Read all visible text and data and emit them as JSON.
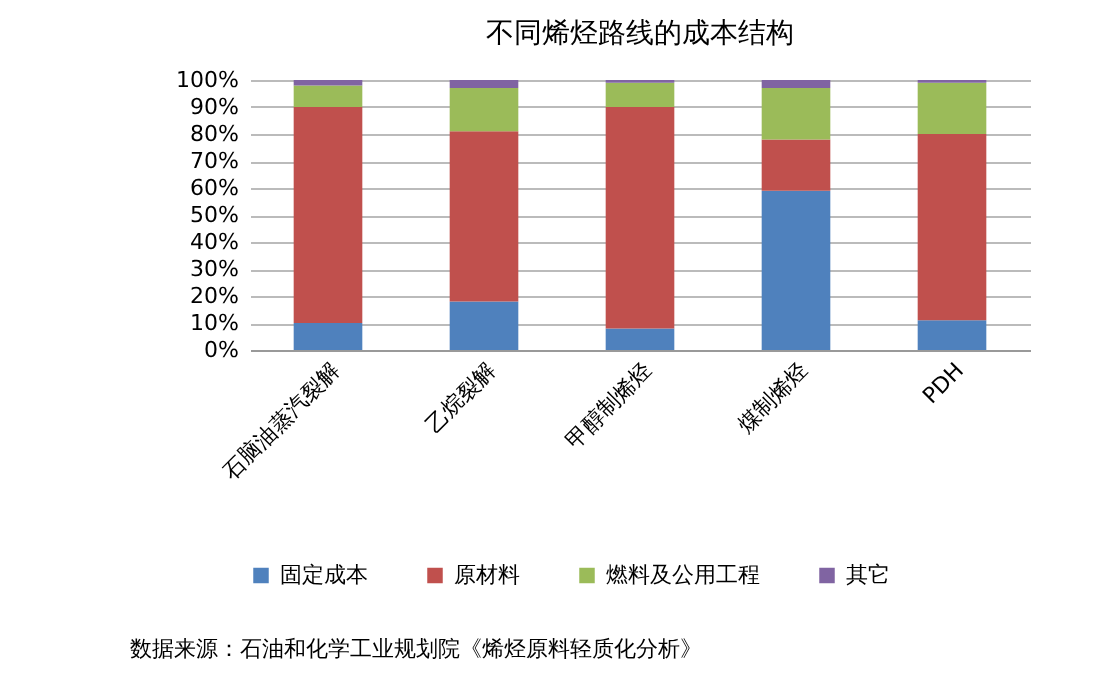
{
  "chart_data": {
    "type": "bar",
    "title": "不同烯烃路线的成本结构",
    "stacked": true,
    "categories": [
      "石脑油蒸汽裂解",
      "乙烷裂解",
      "甲醇制烯烃",
      "煤制烯烃",
      "PDH"
    ],
    "series": [
      {
        "name": "固定成本",
        "color": "#4f81bd",
        "values": [
          10,
          18,
          8,
          59,
          11
        ]
      },
      {
        "name": "原材料",
        "color": "#c0504d",
        "values": [
          80,
          63,
          82,
          19,
          69
        ]
      },
      {
        "name": "燃料及公用工程",
        "color": "#9bbb59",
        "values": [
          8,
          16,
          9,
          19,
          19
        ]
      },
      {
        "name": "其它",
        "color": "#8064a2",
        "values": [
          2,
          3,
          1,
          3,
          1
        ]
      }
    ],
    "ylim": [
      0,
      100
    ],
    "yticks": [
      {
        "value": 0,
        "label": "0%"
      },
      {
        "value": 10,
        "label": "10%"
      },
      {
        "value": 20,
        "label": "20%"
      },
      {
        "value": 30,
        "label": "30%"
      },
      {
        "value": 40,
        "label": "40%"
      },
      {
        "value": 50,
        "label": "50%"
      },
      {
        "value": 60,
        "label": "60%"
      },
      {
        "value": 70,
        "label": "70%"
      },
      {
        "value": 80,
        "label": "80%"
      },
      {
        "value": 90,
        "label": "90%"
      },
      {
        "value": 100,
        "label": "100%"
      }
    ],
    "grid": "y",
    "legend": "bottom",
    "annotations": [
      "数据来源：石油和化学工业规划院《烯烃原料轻质化分析》"
    ]
  }
}
